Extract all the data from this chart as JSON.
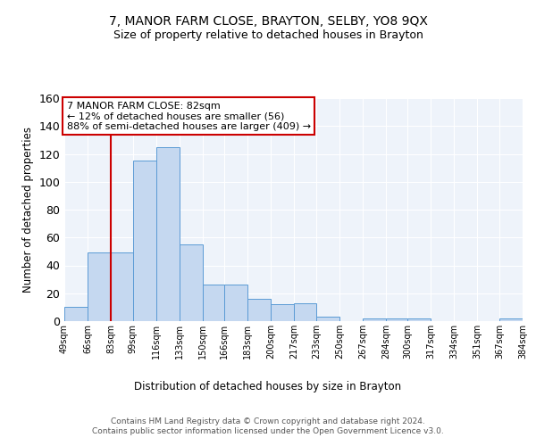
{
  "title": "7, MANOR FARM CLOSE, BRAYTON, SELBY, YO8 9QX",
  "subtitle": "Size of property relative to detached houses in Brayton",
  "xlabel": "Distribution of detached houses by size in Brayton",
  "ylabel": "Number of detached properties",
  "bar_edges": [
    49,
    66,
    83,
    99,
    116,
    133,
    150,
    166,
    183,
    200,
    217,
    233,
    250,
    267,
    284,
    300,
    317,
    334,
    351,
    367,
    384
  ],
  "bar_heights": [
    10,
    49,
    49,
    115,
    125,
    55,
    26,
    26,
    16,
    12,
    13,
    3,
    0,
    2,
    2,
    2,
    0,
    0,
    0,
    2
  ],
  "tick_labels": [
    "49sqm",
    "66sqm",
    "83sqm",
    "99sqm",
    "116sqm",
    "133sqm",
    "150sqm",
    "166sqm",
    "183sqm",
    "200sqm",
    "217sqm",
    "233sqm",
    "250sqm",
    "267sqm",
    "284sqm",
    "300sqm",
    "317sqm",
    "334sqm",
    "351sqm",
    "367sqm",
    "384sqm"
  ],
  "bar_color": "#c5d8f0",
  "bar_edge_color": "#5b9bd5",
  "vline_x": 83,
  "vline_color": "#cc0000",
  "annotation_text": "7 MANOR FARM CLOSE: 82sqm\n← 12% of detached houses are smaller (56)\n88% of semi-detached houses are larger (409) →",
  "annotation_box_color": "#ffffff",
  "annotation_box_edge": "#cc0000",
  "ylim": [
    0,
    160
  ],
  "yticks": [
    0,
    20,
    40,
    60,
    80,
    100,
    120,
    140,
    160
  ],
  "bg_color": "#eef3fa",
  "footer_text": "Contains HM Land Registry data © Crown copyright and database right 2024.\nContains public sector information licensed under the Open Government Licence v3.0.",
  "title_fontsize": 10,
  "subtitle_fontsize": 9
}
